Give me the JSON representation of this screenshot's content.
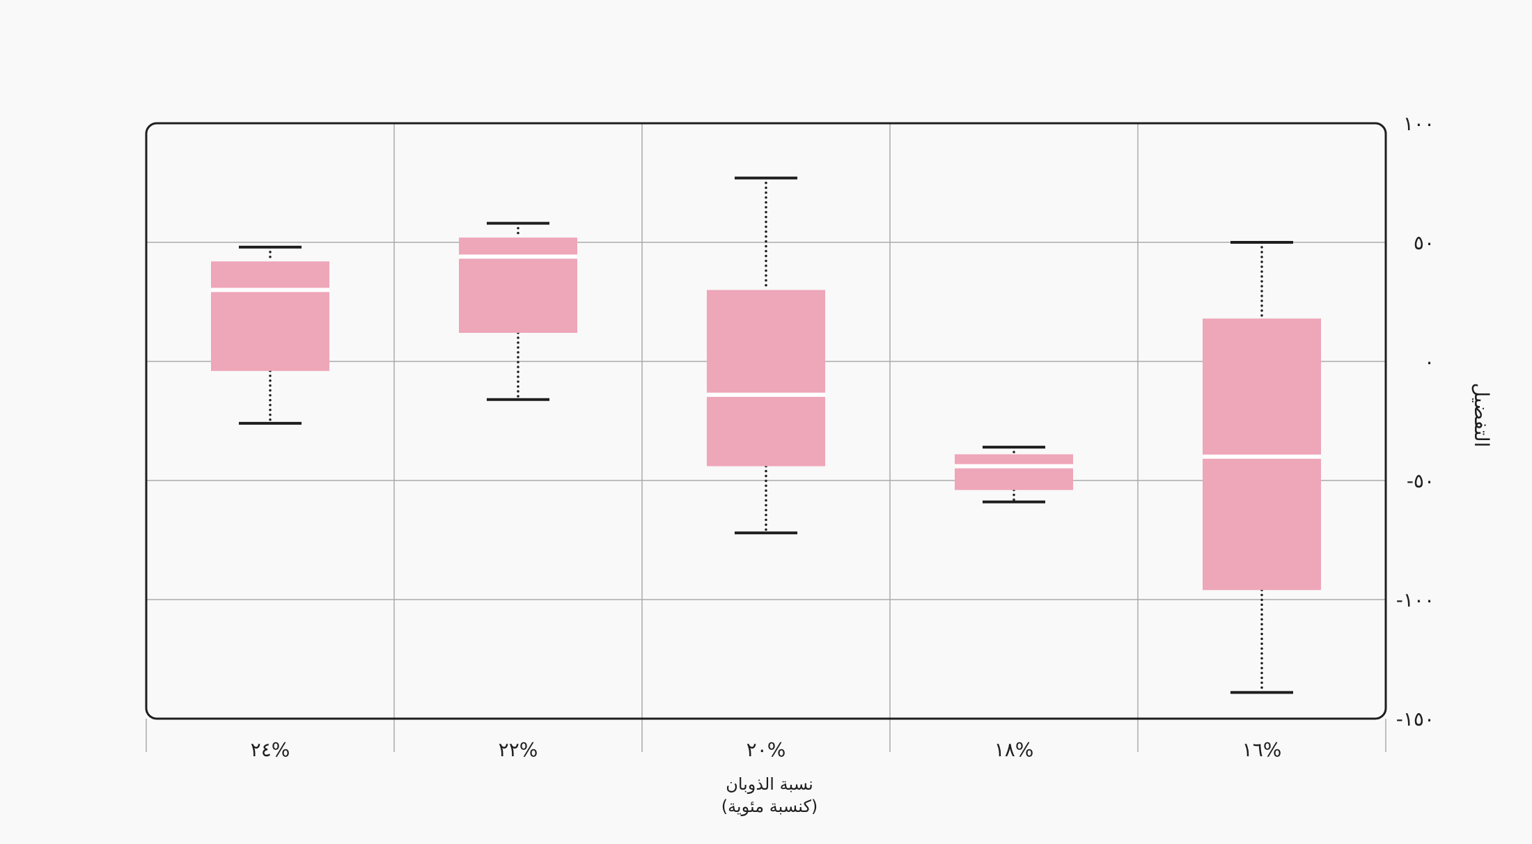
{
  "chart_data": {
    "type": "boxplot",
    "title": "",
    "xlabel": [
      "نسبة الذوبان",
      "(كنسبة مئوية)"
    ],
    "ylabel": "التفضيل",
    "categories": [
      "١٦%",
      "١٨%",
      "٢٠%",
      "٢٢%",
      "٢٤%"
    ],
    "x_axis_direction": "right-to-left",
    "y_axis_position": "right",
    "y_ticks": [
      {
        "value": 100,
        "label": "١٠٠"
      },
      {
        "value": 50,
        "label": "٥٠"
      },
      {
        "value": 0,
        "label": "٠"
      },
      {
        "value": -50,
        "label": "-٥٠"
      },
      {
        "value": -100,
        "label": "-١٠٠"
      },
      {
        "value": -150,
        "label": "-١٥٠"
      }
    ],
    "ylim": [
      -150,
      100
    ],
    "grid": true,
    "box_color": "#eea6b9",
    "boxes": [
      {
        "category": "١٦%",
        "whisker_low": -139,
        "q1": -96,
        "median": -40,
        "q3": 18,
        "whisker_high": 50
      },
      {
        "category": "١٨%",
        "whisker_low": -59,
        "q1": -54,
        "median": -44,
        "q3": -39,
        "whisker_high": -36
      },
      {
        "category": "٢٠%",
        "whisker_low": -72,
        "q1": -44,
        "median": -14,
        "q3": 30,
        "whisker_high": 77
      },
      {
        "category": "٢٢%",
        "whisker_low": -16,
        "q1": 12,
        "median": 44,
        "q3": 52,
        "whisker_high": 58
      },
      {
        "category": "٢٤%",
        "whisker_low": -26,
        "q1": -4,
        "median": 30,
        "q3": 42,
        "whisker_high": 48
      }
    ]
  }
}
